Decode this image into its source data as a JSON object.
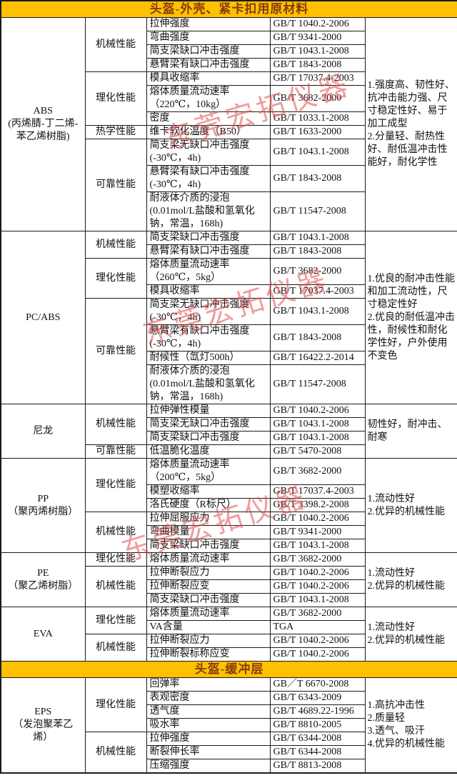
{
  "colors": {
    "header_bg": "#ffc000",
    "header_text": "#843c0c",
    "border": "#1a1a1a",
    "watermark": "#e05050"
  },
  "watermark": {
    "text": "东莞宏拓仪器"
  },
  "sections": [
    {
      "title": "头盔-外壳、紧卡扣用原材料",
      "materials": [
        {
          "name": "ABS\n(丙烯腈-丁二烯-\n苯乙烯树脂)",
          "note": "1.强度高、韧性好、抗冲击能力强、尺寸稳定性好、易于加工成型\n2.分量轻、耐热性好、耐低温冲击性能好，耐化学性",
          "groups": [
            {
              "category": "机械性能",
              "rows": [
                {
                  "p": "拉伸强度",
                  "s": "GB/T 1040.2-2006"
                },
                {
                  "p": "弯曲强度",
                  "s": "GB/T 9341-2000"
                },
                {
                  "p": "简支梁缺口冲击强度",
                  "s": "GB/T 1043.1-2008"
                },
                {
                  "p": "悬臂梁有缺口冲击强度",
                  "s": "GB/T 1843-2008"
                }
              ]
            },
            {
              "category": "理化性能",
              "rows": [
                {
                  "p": "模具收缩率",
                  "s": "GB/T 17037.4-2003"
                },
                {
                  "p": "熔体质量流动速率\n（220℃，10kg）",
                  "s": "GB/T 3682-2000"
                },
                {
                  "p": "密度",
                  "s": "GB/T 1033.1-2008"
                }
              ]
            },
            {
              "category": "热学性能",
              "rows": [
                {
                  "p": "维卡软化温度（B50）",
                  "s": "GB/T 1633-2000"
                }
              ]
            },
            {
              "category": "可靠性能",
              "rows": [
                {
                  "p": "简支梁无缺口冲击强度\n(-30℃，4h)",
                  "s": "GB/T 1043.1-2008"
                },
                {
                  "p": "悬臂梁有缺口冲击强度\n(-30℃，4h)",
                  "s": "GB/T 1843-2008"
                },
                {
                  "p": "耐液体介质的浸泡\n(0.01mol/L盐酸和氢氧化\n钠，常温，168h)",
                  "s": "GB/T 11547-2008"
                }
              ]
            }
          ]
        },
        {
          "name": "PC/ABS",
          "note": "1.优良的耐冲击性能和加工流动性，尺寸稳定性好\n2.优良的耐低温冲击性，耐候性和耐化学性好，户外使用不变色",
          "groups": [
            {
              "category": "机械性能",
              "rows": [
                {
                  "p": "简支梁缺口冲击强度",
                  "s": "GB/T 1043.1-2008"
                },
                {
                  "p": "悬臂梁有缺口冲击强度",
                  "s": "GB/T 1843-2008"
                }
              ]
            },
            {
              "category": "理化性能",
              "rows": [
                {
                  "p": "熔体质量流动速率\n（260℃，5kg）",
                  "s": "GB/T 3682-2000"
                },
                {
                  "p": "模具收缩率",
                  "s": "GB/T 17037.4-2003"
                }
              ]
            },
            {
              "category": "可靠性能",
              "rows": [
                {
                  "p": "简支梁无缺口冲击强度\n(-30℃，4h)",
                  "s": "GB/T 1043.1-2008"
                },
                {
                  "p": "悬臂梁有缺口冲击强度\n(-30℃，4h)",
                  "s": "GB/T 1843-2008"
                },
                {
                  "p": "耐候性（氙灯500h）",
                  "s": "GB/T 16422.2-2014"
                },
                {
                  "p": "耐液体介质的浸泡\n(0.01mol/L盐酸和氢氧化\n钠，常温，168h)",
                  "s": "GB/T 11547-2008"
                }
              ]
            }
          ]
        },
        {
          "name": "尼龙",
          "note": "韧性好，耐冲击、耐寒",
          "groups": [
            {
              "category": "机械性能",
              "rows": [
                {
                  "p": "拉伸弹性模量",
                  "s": "GB/T 1040.2-2006"
                },
                {
                  "p": "简支梁无缺口冲击强度",
                  "s": "GB/T 1043.1-2008"
                },
                {
                  "p": "简支梁缺口冲击强度",
                  "s": "GB/T 1043.1-2008"
                }
              ]
            },
            {
              "category": "可靠性能",
              "rows": [
                {
                  "p": "低温脆化温度",
                  "s": "GB/T 5470-2008"
                }
              ]
            }
          ]
        },
        {
          "name": "PP\n（聚丙烯树脂）",
          "note": "1.流动性好\n2.优异的机械性能",
          "groups": [
            {
              "category": "理化性能",
              "rows": [
                {
                  "p": "熔体质量流动速率\n（200℃，5kg）",
                  "s": "GB/T 3682-2000"
                },
                {
                  "p": "模塑收缩率",
                  "s": "GB/T 17037.4-2003"
                },
                {
                  "p": "洛氏硬度（R标尺）",
                  "s": "GB/T 3398.2-2008"
                }
              ]
            },
            {
              "category": "机械性能",
              "rows": [
                {
                  "p": "拉伸屈服应力",
                  "s": "GB/T 1040.2-2006"
                },
                {
                  "p": "弯曲模量",
                  "s": "GB/T 9341-2000"
                },
                {
                  "p": "简支梁缺口冲击强度",
                  "s": "GB/T 1043.1-2008"
                }
              ]
            }
          ]
        },
        {
          "name": "PE\n（聚乙烯树脂）",
          "note": "1.流动性好\n2.优异的机械性能",
          "groups": [
            {
              "category": "理化性能",
              "rows": [
                {
                  "p": "熔体质量流动速率",
                  "s": "GB/T 3682-2000"
                }
              ]
            },
            {
              "category": "机械性能",
              "rows": [
                {
                  "p": "拉伸断裂应力",
                  "s": "GB/T 1040.2-2006"
                },
                {
                  "p": "拉伸断裂应变",
                  "s": "GB/T 1040.2-2006"
                },
                {
                  "p": "简支梁缺口冲击强度",
                  "s": "GB/T 1043.1-2008"
                }
              ]
            }
          ]
        },
        {
          "name": "EVA",
          "note": "1.流动性好\n2.优异的机械性能",
          "groups": [
            {
              "category": "理化性能",
              "rows": [
                {
                  "p": "熔体质量流动速率",
                  "s": "GB/T 3682-2000"
                },
                {
                  "p": "VA含量",
                  "s": "TGA"
                }
              ]
            },
            {
              "category": "机械性能",
              "rows": [
                {
                  "p": "拉伸断裂应力",
                  "s": "GB/T 1040.2-2006"
                },
                {
                  "p": "拉伸断裂标称应变",
                  "s": "GB/T 1040.2-2006"
                }
              ]
            }
          ]
        }
      ]
    },
    {
      "title": "头盔-缓冲层",
      "materials": [
        {
          "name": "EPS\n（发泡聚苯乙\n烯）",
          "note": "1.高抗冲击性\n2.质量轻\n3.透气、吸汗\n4.优异的机械性能",
          "groups": [
            {
              "category": "理化性能",
              "rows": [
                {
                  "p": "回弹率",
                  "s": "GB／T 6670-2008"
                },
                {
                  "p": "表观密度",
                  "s": "GB/T 6343-2009"
                },
                {
                  "p": "透气度",
                  "s": "GB/T 4689.22-1996"
                },
                {
                  "p": "吸水率",
                  "s": "GB/T 8810-2005"
                }
              ]
            },
            {
              "category": "机械性能",
              "rows": [
                {
                  "p": "拉伸强度",
                  "s": "GB/T 6344-2008"
                },
                {
                  "p": "断裂伸长率",
                  "s": "GB/T 6344-2008"
                },
                {
                  "p": "压缩强度",
                  "s": "GB/T 8813-2008"
                }
              ]
            }
          ]
        }
      ]
    }
  ]
}
